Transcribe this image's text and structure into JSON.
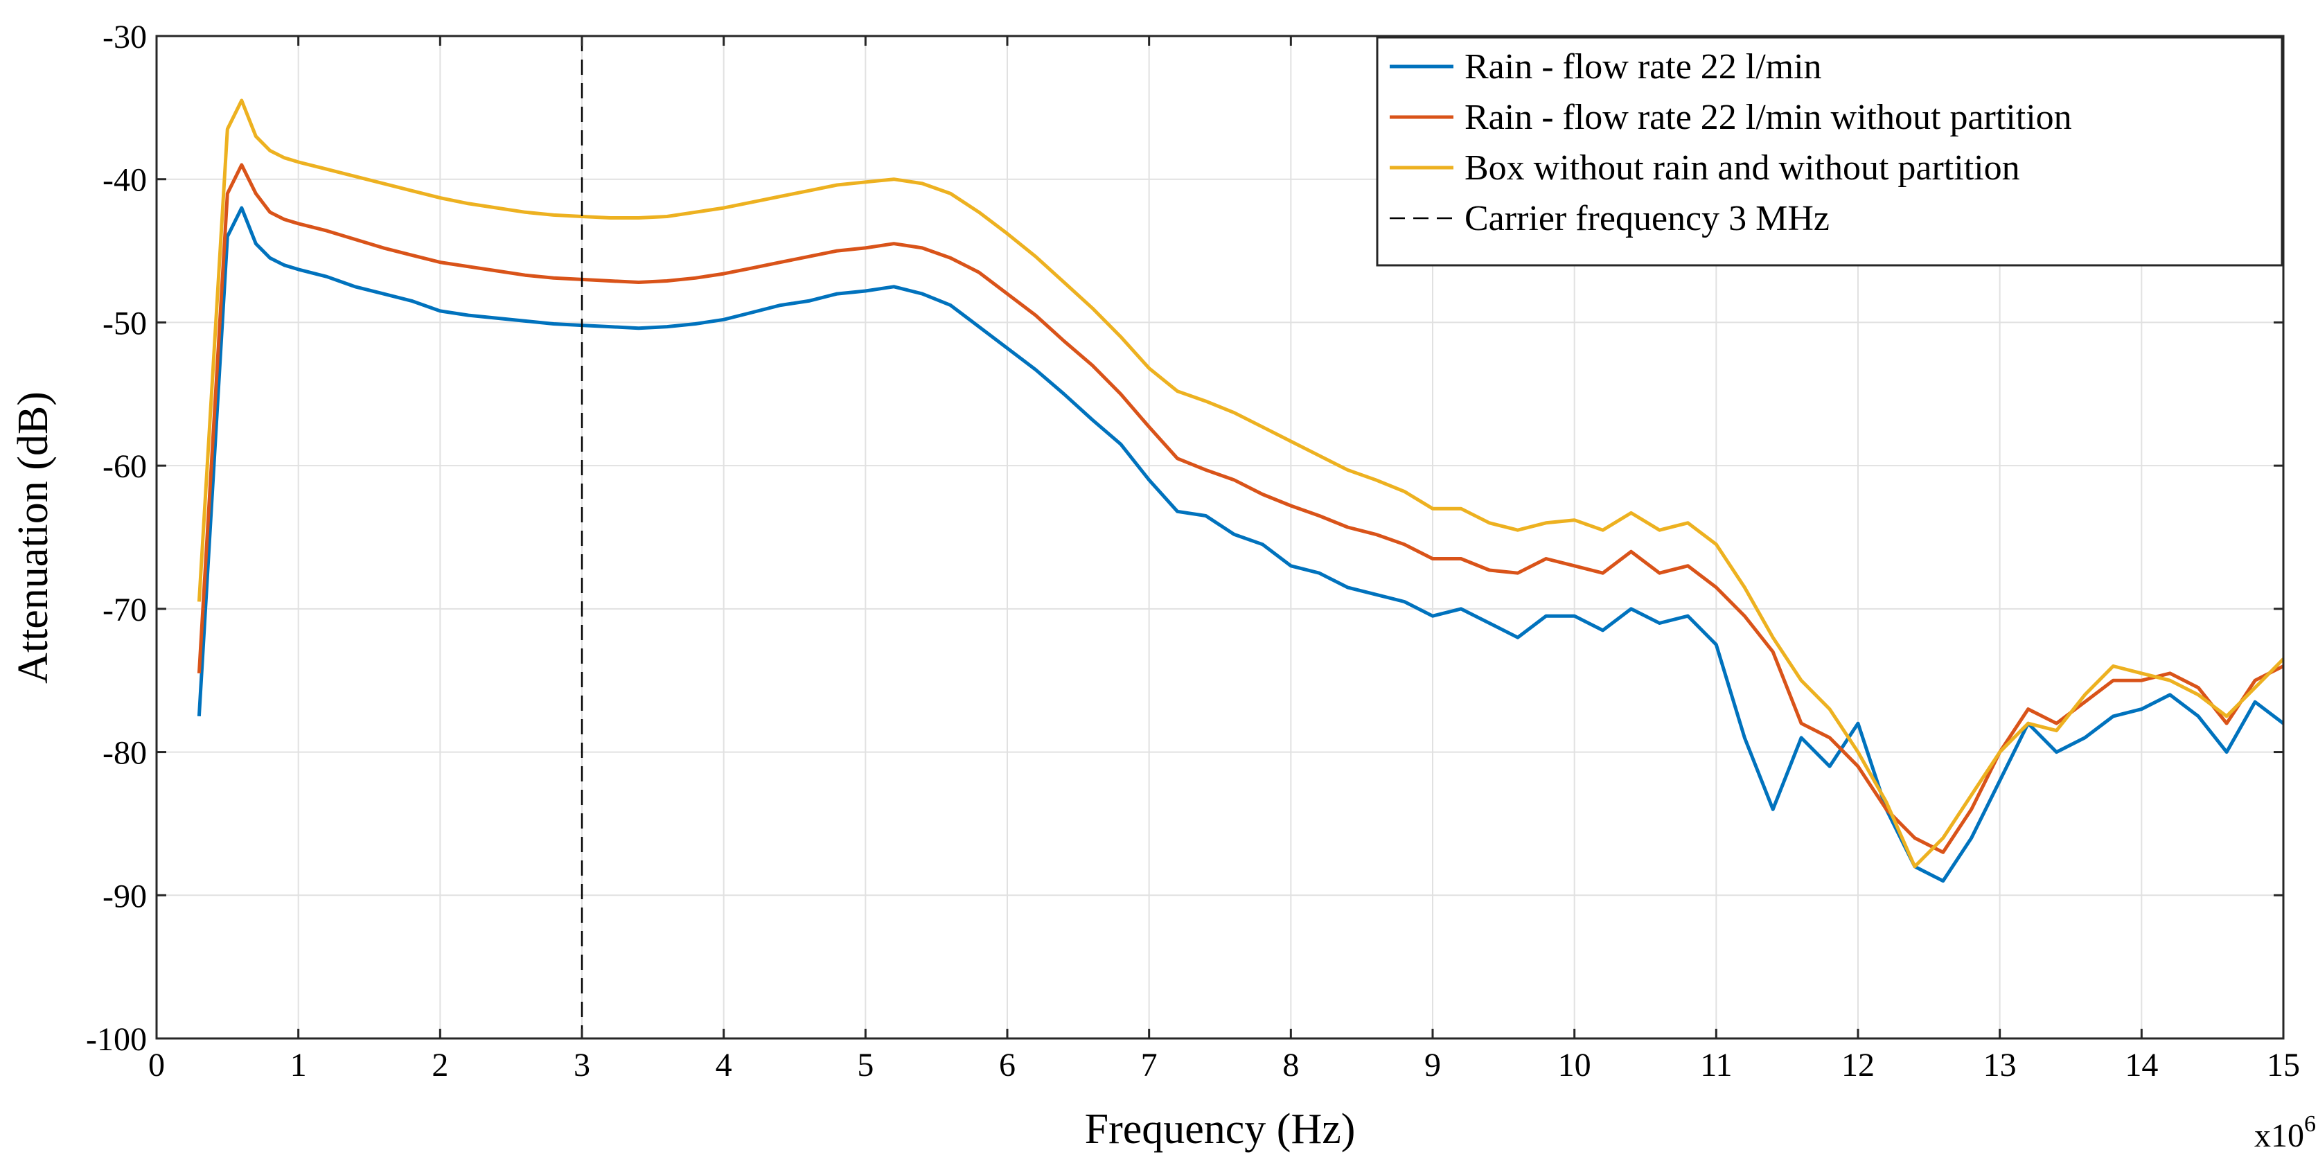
{
  "chart_data": {
    "type": "line",
    "title": "",
    "xlabel": "Frequency (Hz)",
    "ylabel": "Attenuation (dB)",
    "x_multiplier_label": "x10",
    "x_multiplier_exponent": "6",
    "xlim": [
      0,
      15
    ],
    "ylim": [
      -100,
      -30
    ],
    "grid": true,
    "legend_position": "top-right",
    "xticks": [
      "0",
      "1",
      "2",
      "3",
      "4",
      "5",
      "6",
      "7",
      "8",
      "9",
      "10",
      "11",
      "12",
      "13",
      "14",
      "15"
    ],
    "yticks": [
      "-30",
      "-40",
      "-50",
      "-60",
      "-70",
      "-80",
      "-90",
      "-100"
    ],
    "x": [
      0.3,
      0.5,
      0.6,
      0.7,
      0.8,
      0.9,
      1.0,
      1.2,
      1.4,
      1.6,
      1.8,
      2.0,
      2.2,
      2.4,
      2.6,
      2.8,
      3.0,
      3.2,
      3.4,
      3.6,
      3.8,
      4.0,
      4.2,
      4.4,
      4.6,
      4.8,
      5.0,
      5.2,
      5.4,
      5.6,
      5.8,
      6.0,
      6.2,
      6.4,
      6.6,
      6.8,
      7.0,
      7.2,
      7.4,
      7.6,
      7.8,
      8.0,
      8.2,
      8.4,
      8.6,
      8.8,
      9.0,
      9.2,
      9.4,
      9.6,
      9.8,
      10.0,
      10.2,
      10.4,
      10.6,
      10.8,
      11.0,
      11.2,
      11.4,
      11.6,
      11.8,
      12.0,
      12.2,
      12.4,
      12.6,
      12.8,
      13.0,
      13.2,
      13.4,
      13.6,
      13.8,
      14.0,
      14.2,
      14.4,
      14.6,
      14.8,
      15.0
    ],
    "series": [
      {
        "name": "Rain - flow rate 22 l/min",
        "color": "#0072BD",
        "values": [
          -77.5,
          -44,
          -42,
          -44.5,
          -45.5,
          -46,
          -46.3,
          -46.8,
          -47.5,
          -48,
          -48.5,
          -49.2,
          -49.5,
          -49.7,
          -49.9,
          -50.1,
          -50.2,
          -50.3,
          -50.4,
          -50.3,
          -50.1,
          -49.8,
          -49.3,
          -48.8,
          -48.5,
          -48,
          -47.8,
          -47.5,
          -48,
          -48.8,
          -50.3,
          -51.8,
          -53.3,
          -55,
          -56.8,
          -58.5,
          -61,
          -63.2,
          -63.5,
          -64.8,
          -65.5,
          -67,
          -67.5,
          -68.5,
          -69,
          -69.5,
          -70.5,
          -70,
          -71,
          -72,
          -70.5,
          -70.5,
          -71.5,
          -70,
          -71,
          -70.5,
          -72.5,
          -79,
          -84,
          -79,
          -81,
          -78,
          -84,
          -88,
          -89,
          -86,
          -82,
          -78,
          -80,
          -79,
          -77.5,
          -77,
          -76,
          -77.5,
          -80,
          -76.5,
          -78
        ]
      },
      {
        "name": "Rain - flow rate 22 l/min without partition",
        "color": "#D95319",
        "values": [
          -74.5,
          -41,
          -39,
          -41,
          -42.3,
          -42.8,
          -43.1,
          -43.6,
          -44.2,
          -44.8,
          -45.3,
          -45.8,
          -46.1,
          -46.4,
          -46.7,
          -46.9,
          -47,
          -47.1,
          -47.2,
          -47.1,
          -46.9,
          -46.6,
          -46.2,
          -45.8,
          -45.4,
          -45,
          -44.8,
          -44.5,
          -44.8,
          -45.5,
          -46.5,
          -48,
          -49.5,
          -51.3,
          -53,
          -55,
          -57.3,
          -59.5,
          -60.3,
          -61,
          -62,
          -62.8,
          -63.5,
          -64.3,
          -64.8,
          -65.5,
          -66.5,
          -66.5,
          -67.3,
          -67.5,
          -66.5,
          -67,
          -67.5,
          -66,
          -67.5,
          -67,
          -68.5,
          -70.5,
          -73,
          -78,
          -79,
          -81,
          -84,
          -86,
          -87,
          -84,
          -80,
          -77,
          -78,
          -76.5,
          -75,
          -75,
          -74.5,
          -75.5,
          -78,
          -75,
          -74
        ]
      },
      {
        "name": "Box without rain and without partition",
        "color": "#EDB120",
        "values": [
          -69.5,
          -36.5,
          -34.5,
          -37,
          -38,
          -38.5,
          -38.8,
          -39.3,
          -39.8,
          -40.3,
          -40.8,
          -41.3,
          -41.7,
          -42,
          -42.3,
          -42.5,
          -42.6,
          -42.7,
          -42.7,
          -42.6,
          -42.3,
          -42,
          -41.6,
          -41.2,
          -40.8,
          -40.4,
          -40.2,
          -40,
          -40.3,
          -41,
          -42.3,
          -43.8,
          -45.4,
          -47.2,
          -49,
          -51,
          -53.2,
          -54.8,
          -55.5,
          -56.3,
          -57.3,
          -58.3,
          -59.3,
          -60.3,
          -61,
          -61.8,
          -63,
          -63,
          -64,
          -64.5,
          -64,
          -63.8,
          -64.5,
          -63.3,
          -64.5,
          -64,
          -65.5,
          -68.5,
          -72,
          -75,
          -77,
          -80,
          -83.5,
          -88,
          -86,
          -83,
          -80,
          -78,
          -78.5,
          -76,
          -74,
          -74.5,
          -75,
          -76,
          -77.5,
          -75.5,
          -73.5
        ]
      },
      {
        "name": "Carrier frequency 3 MHz",
        "color": "#000000",
        "vertical_line_x": 3
      }
    ]
  }
}
